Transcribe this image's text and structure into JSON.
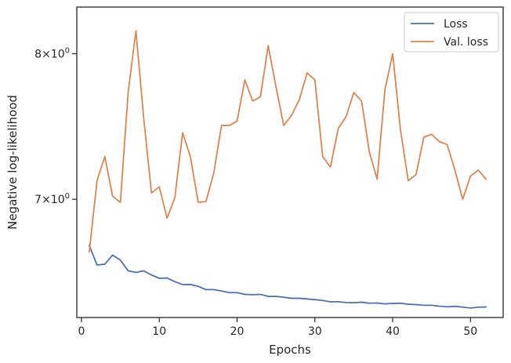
{
  "chart_data": {
    "type": "line",
    "xlabel": "Epochs",
    "ylabel": "Negative log-likelihood",
    "y_scale": "log",
    "xlim": [
      -0.6,
      54.2
    ],
    "ylim": [
      6.28,
      8.35
    ],
    "x_ticks": [
      {
        "value": 0,
        "label": "0"
      },
      {
        "value": 10,
        "label": "10"
      },
      {
        "value": 20,
        "label": "20"
      },
      {
        "value": 30,
        "label": "30"
      },
      {
        "value": 40,
        "label": "40"
      },
      {
        "value": 50,
        "label": "50"
      }
    ],
    "y_ticks": [
      {
        "value": 7,
        "base": "7",
        "exp": "0"
      },
      {
        "value": 8,
        "base": "8",
        "exp": "0"
      }
    ],
    "grid": false,
    "legend_position": "top-right",
    "x": [
      1,
      2,
      3,
      4,
      5,
      6,
      7,
      8,
      9,
      10,
      11,
      12,
      13,
      14,
      15,
      16,
      17,
      18,
      19,
      20,
      21,
      22,
      23,
      24,
      25,
      26,
      27,
      28,
      29,
      30,
      31,
      32,
      33,
      34,
      35,
      36,
      37,
      38,
      39,
      40,
      41,
      42,
      43,
      44,
      45,
      46,
      47,
      48,
      49,
      50,
      51,
      52
    ],
    "series": [
      {
        "name": "Loss",
        "color": "#4c72b0",
        "values": [
          6.71,
          6.59,
          6.595,
          6.65,
          6.62,
          6.555,
          6.545,
          6.555,
          6.53,
          6.51,
          6.512,
          6.49,
          6.473,
          6.473,
          6.462,
          6.443,
          6.443,
          6.435,
          6.425,
          6.425,
          6.415,
          6.413,
          6.415,
          6.403,
          6.403,
          6.398,
          6.392,
          6.392,
          6.388,
          6.384,
          6.379,
          6.371,
          6.372,
          6.367,
          6.366,
          6.369,
          6.363,
          6.364,
          6.359,
          6.362,
          6.363,
          6.357,
          6.355,
          6.351,
          6.351,
          6.346,
          6.342,
          6.345,
          6.34,
          6.335,
          6.34,
          6.341
        ]
      },
      {
        "name": "Val. loss",
        "color": "#dd8452",
        "values": [
          6.67,
          7.12,
          7.28,
          7.02,
          6.98,
          7.72,
          8.17,
          7.54,
          7.04,
          7.08,
          6.88,
          7.01,
          7.44,
          7.28,
          6.98,
          6.985,
          7.17,
          7.49,
          7.49,
          7.52,
          7.81,
          7.66,
          7.69,
          8.06,
          7.76,
          7.49,
          7.56,
          7.67,
          7.86,
          7.81,
          7.28,
          7.21,
          7.47,
          7.55,
          7.72,
          7.66,
          7.31,
          7.13,
          7.74,
          8.0,
          7.46,
          7.12,
          7.16,
          7.41,
          7.43,
          7.38,
          7.36,
          7.19,
          7.0,
          7.15,
          7.19,
          7.13
        ]
      }
    ]
  }
}
